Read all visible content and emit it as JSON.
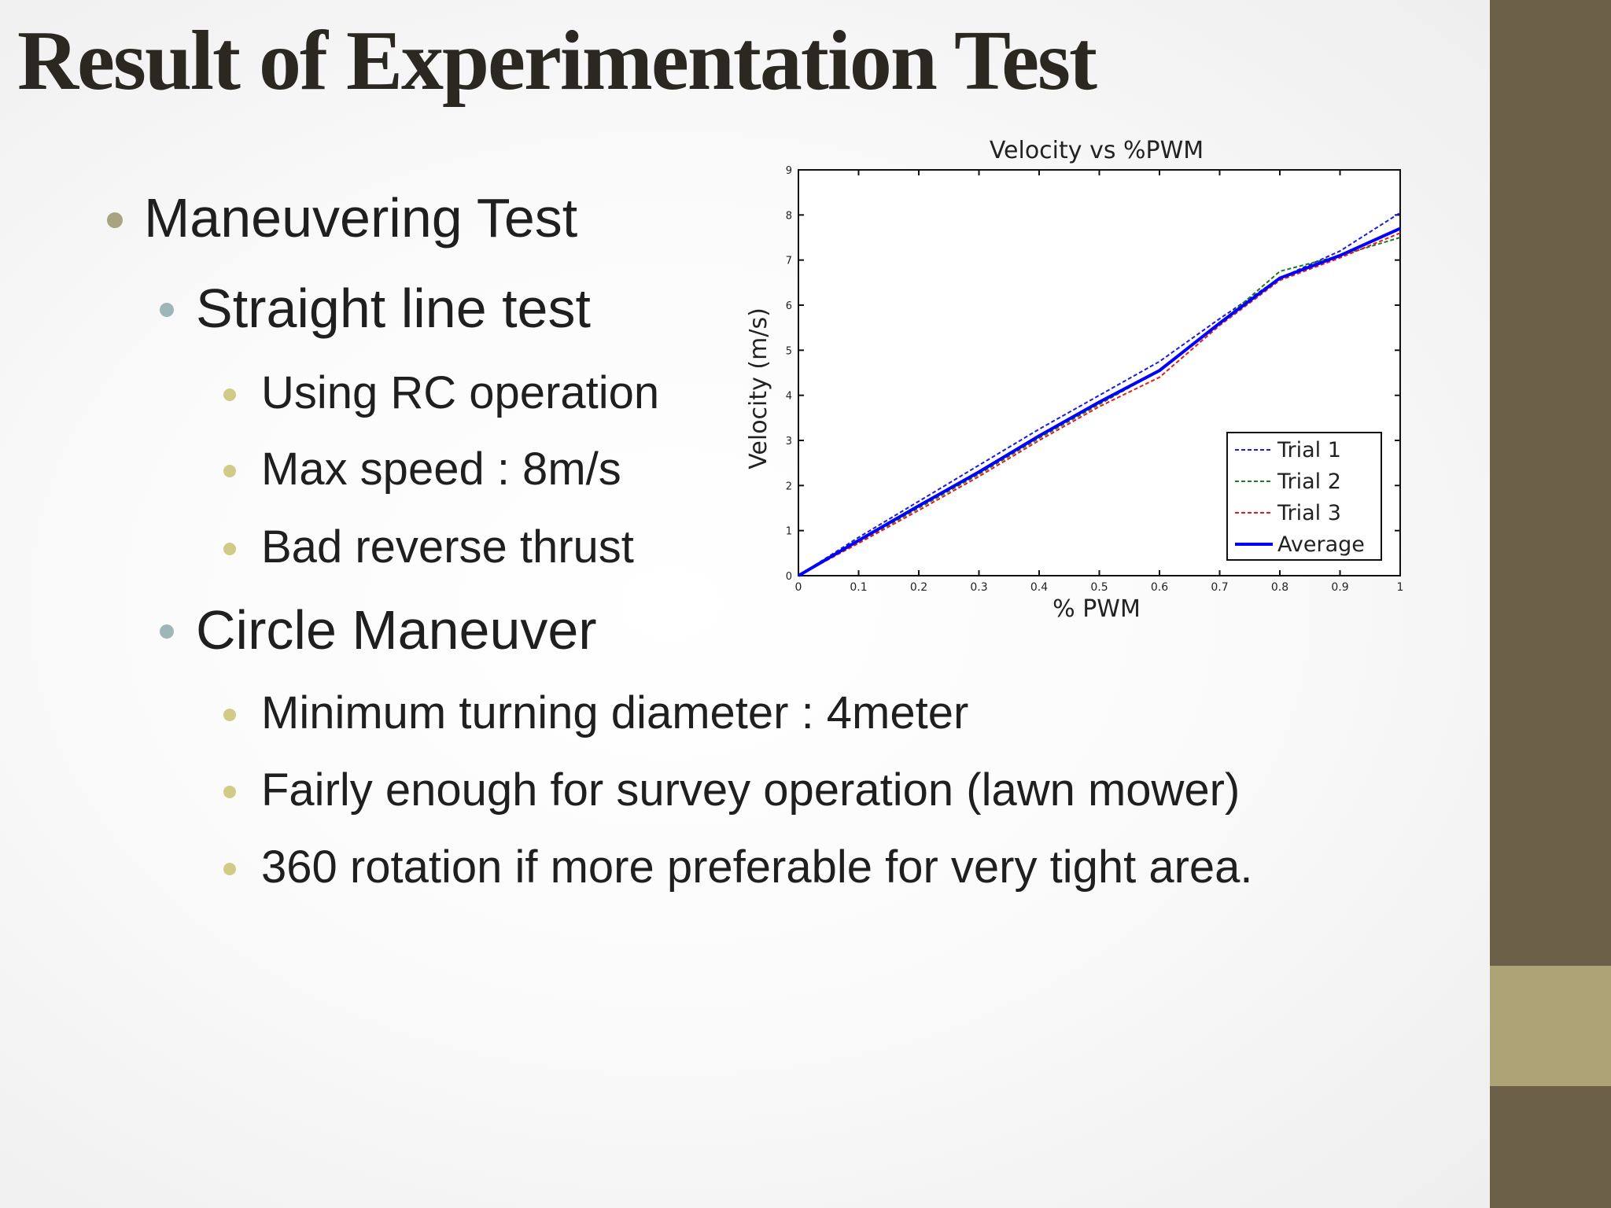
{
  "slide": {
    "title": "Result of Experimentation Test",
    "bullets": [
      {
        "level": 1,
        "text": "Maneuvering Test"
      },
      {
        "level": 2,
        "text": "Straight line test"
      },
      {
        "level": 3,
        "text": "Using RC operation"
      },
      {
        "level": 3,
        "text": "Max speed : 8m/s"
      },
      {
        "level": 3,
        "text": "Bad reverse thrust"
      },
      {
        "level": 2,
        "text": "Circle Maneuver"
      },
      {
        "level": 3,
        "text": "Minimum turning diameter : 4meter"
      },
      {
        "level": 3,
        "text": "Fairly enough for survey operation (lawn mower)"
      },
      {
        "level": 3,
        "text": "360 rotation if more preferable for very tight area."
      }
    ]
  },
  "colors": {
    "sidebar": "#6b5f47",
    "sidebar_band": "#ada377",
    "bullet_level1": "#a8a482",
    "bullet_level2": "#9fb6b8",
    "bullet_level3": "#d0cb86",
    "trial1": "#1a1ae6",
    "trial2": "#1e7a1e",
    "trial3": "#e61a1a",
    "average": "#0000ff"
  },
  "chart_data": {
    "type": "line",
    "title": "Velocity vs %PWM",
    "xlabel": "% PWM",
    "ylabel": "Velocity (m/s)",
    "xlim": [
      0,
      1
    ],
    "ylim": [
      0,
      9
    ],
    "xticks": [
      "0",
      "0.1",
      "0.2",
      "0.3",
      "0.4",
      "0.5",
      "0.6",
      "0.7",
      "0.8",
      "0.9",
      "1"
    ],
    "yticks": [
      "0",
      "1",
      "2",
      "3",
      "4",
      "5",
      "6",
      "7",
      "8",
      "9"
    ],
    "grid": false,
    "legend_position": "bottom-right",
    "x": [
      0,
      0.1,
      0.2,
      0.3,
      0.4,
      0.5,
      0.6,
      0.7,
      0.8,
      0.9,
      1.0
    ],
    "series": [
      {
        "name": "Trial 1",
        "style": "dashed",
        "values": [
          0,
          0.85,
          1.65,
          2.45,
          3.25,
          4.0,
          4.75,
          5.7,
          6.6,
          7.2,
          8.05
        ]
      },
      {
        "name": "Trial 2",
        "style": "dashed",
        "values": [
          0,
          0.75,
          1.5,
          2.25,
          3.05,
          3.8,
          4.55,
          5.6,
          6.75,
          7.1,
          7.5
        ]
      },
      {
        "name": "Trial 3",
        "style": "dashed",
        "values": [
          0,
          0.72,
          1.45,
          2.2,
          3.0,
          3.75,
          4.4,
          5.55,
          6.55,
          7.05,
          7.6
        ]
      },
      {
        "name": "Average",
        "style": "solid",
        "values": [
          0,
          0.78,
          1.55,
          2.3,
          3.1,
          3.85,
          4.55,
          5.6,
          6.6,
          7.1,
          7.7
        ]
      }
    ]
  }
}
